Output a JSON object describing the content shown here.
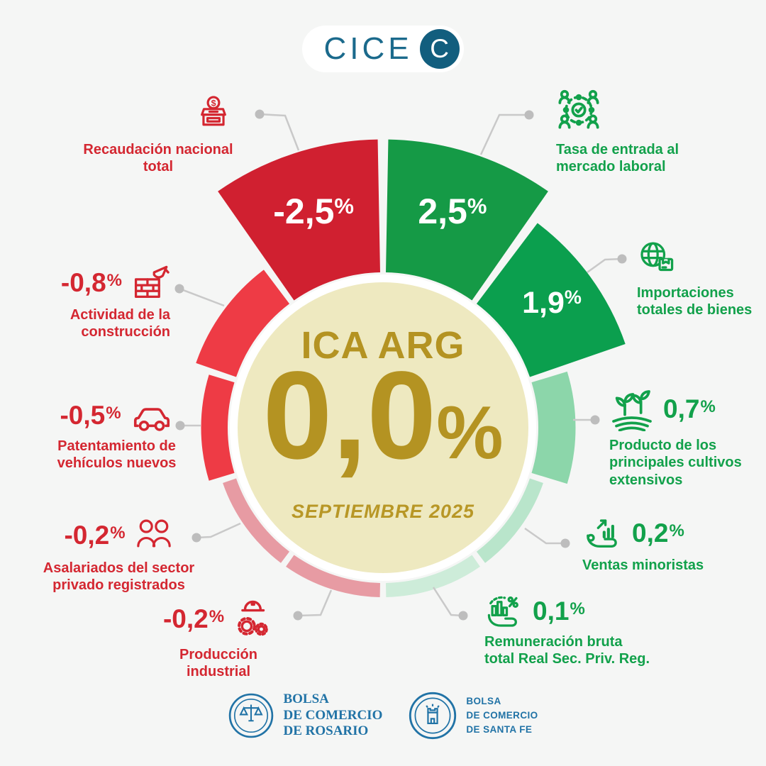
{
  "logo": {
    "brand": "CICE",
    "badge": "C"
  },
  "center": {
    "title": "ICA ARG",
    "value_label": "0,0",
    "percent_sign": "%",
    "subtitle": "SEPTIEMBRE 2025"
  },
  "colors": {
    "background": "#f5f6f5",
    "center_fill": "#eee9c0",
    "center_ring": "#ffffff",
    "gold": "#b49322",
    "red_text": "#d42731",
    "green_text": "#12a14b",
    "connector_line": "#c9c9c9",
    "connector_dot": "#bdbdbd",
    "logo_teal": "#125e7e",
    "footer_blue": "#2173a6"
  },
  "chart_data": {
    "type": "radial-bar",
    "title": "ICA ARG",
    "center_value": 0.0,
    "center_value_label": "0,0",
    "period": "SEPTIEMBRE 2025",
    "unit": "%",
    "percent_sign": "%",
    "legend_note": "negative indicators on left (red), positive on right (green)",
    "negative": [
      {
        "slug": "recaudacion-nacional-total",
        "label": "Recaudación nacional total",
        "lines": [
          "Recaudación nacional total"
        ],
        "value": -2.5,
        "value_label": "-2,5",
        "color": "#d02030",
        "icon": "donation-box-icon",
        "value_in_wedge": true
      },
      {
        "slug": "actividad-construccion",
        "label": "Actividad de la construcción",
        "lines": [
          "Actividad de la",
          "construcción"
        ],
        "value": -0.8,
        "value_label": "-0,8",
        "color": "#ee3b45",
        "icon": "bricks-trowel-icon",
        "value_in_wedge": false
      },
      {
        "slug": "patentamiento-vehiculos-nuevos",
        "label": "Patentamiento de vehículos nuevos",
        "lines": [
          "Patentamiento de",
          "vehículos nuevos"
        ],
        "value": -0.5,
        "value_label": "-0,5",
        "color": "#ee3b45",
        "icon": "car-icon",
        "value_in_wedge": false
      },
      {
        "slug": "asalariados-sector-privado",
        "label": "Asalariados del sector privado registrados",
        "lines": [
          "Asalariados del sector",
          "privado registrados"
        ],
        "value": -0.2,
        "value_label": "-0,2",
        "color": "#e79ba3",
        "icon": "two-people-icon",
        "value_in_wedge": false
      },
      {
        "slug": "produccion-industrial",
        "label": "Producción industrial",
        "lines": [
          "Producción industrial"
        ],
        "value": -0.2,
        "value_label": "-0,2",
        "color": "#e79ba3",
        "icon": "helmet-gears-icon",
        "value_in_wedge": false
      }
    ],
    "positive": [
      {
        "slug": "tasa-entrada-mercado-laboral",
        "label": "Tasa de entrada al mercado laboral",
        "lines": [
          "Tasa de entrada al",
          "mercado laboral"
        ],
        "value": 2.5,
        "value_label": "2,5",
        "color": "#159a46",
        "icon": "people-network-icon",
        "value_in_wedge": true
      },
      {
        "slug": "importaciones-totales-bienes",
        "label": "Importaciones totales de bienes",
        "lines": [
          "Importaciones",
          "totales de bienes"
        ],
        "value": 1.9,
        "value_label": "1,9",
        "color": "#0b9f4e",
        "icon": "globe-package-icon",
        "value_in_wedge": true
      },
      {
        "slug": "cultivos-extensivos",
        "label": "Producto de los principales cultivos extensivos",
        "lines": [
          "Producto de los",
          "principales cultivos",
          "extensivos"
        ],
        "value": 0.7,
        "value_label": "0,7",
        "color": "#8cd6aa",
        "icon": "crops-icon",
        "value_in_wedge": false
      },
      {
        "slug": "ventas-minoristas",
        "label": "Ventas minoristas",
        "lines": [
          "Ventas minoristas"
        ],
        "value": 0.2,
        "value_label": "0,2",
        "color": "#b9e5cb",
        "icon": "hand-chart-icon",
        "value_in_wedge": false
      },
      {
        "slug": "remuneracion-bruta",
        "label": "Remuneración bruta total Real Sec. Priv. Reg.",
        "lines": [
          "Remuneración bruta",
          "total Real Sec. Priv. Reg."
        ],
        "value": 0.1,
        "value_label": "0,1",
        "color": "#cdecd9",
        "icon": "hand-percent-icon",
        "value_in_wedge": false
      }
    ]
  },
  "footer": {
    "rosario_lines": [
      "BOLSA",
      "DE COMERCIO",
      "DE ROSARIO"
    ],
    "santafe_lines": [
      "BOLSA",
      "DE COMERCIO",
      "DE SANTA FE"
    ]
  }
}
